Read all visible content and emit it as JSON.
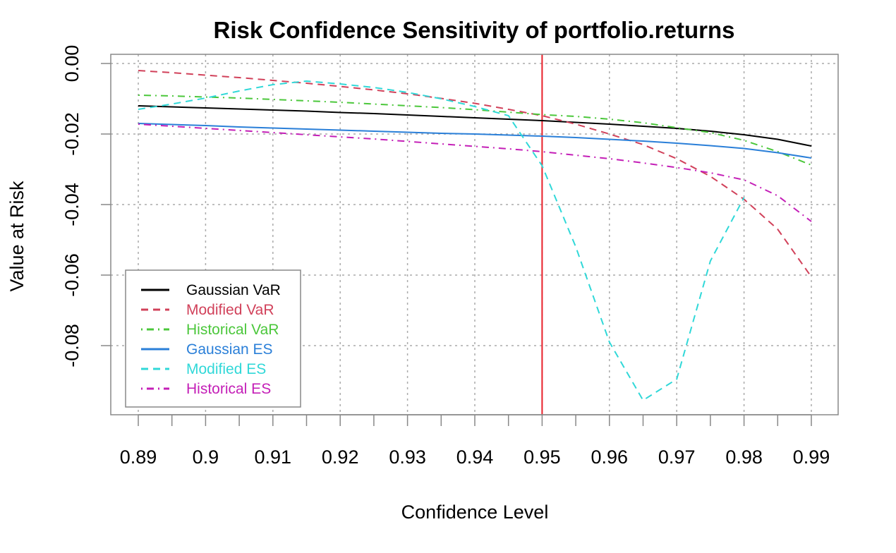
{
  "chart_data": {
    "type": "line",
    "title": "Risk Confidence Sensitivity of portfolio.returns",
    "xlabel": "Confidence Level",
    "ylabel": "Value at Risk",
    "xlim": [
      0.89,
      0.99
    ],
    "ylim": [
      -0.1,
      0.0
    ],
    "x_ticks": [
      0.89,
      0.9,
      0.91,
      0.92,
      0.93,
      0.94,
      0.95,
      0.96,
      0.97,
      0.98,
      0.99
    ],
    "x_tick_labels": [
      "0.89",
      "0.9",
      "0.91",
      "0.92",
      "0.93",
      "0.94",
      "0.95",
      "0.96",
      "0.97",
      "0.98",
      "0.99"
    ],
    "y_ticks": [
      0.0,
      -0.02,
      -0.04,
      -0.06,
      -0.08
    ],
    "y_tick_labels": [
      "0.00",
      "-0.02",
      "-0.04",
      "-0.06",
      "-0.08"
    ],
    "grid": true,
    "vline": {
      "x": 0.95,
      "color": "#e8202a"
    },
    "legend_position": "bottom-left",
    "x": [
      0.89,
      0.895,
      0.9,
      0.905,
      0.91,
      0.915,
      0.92,
      0.925,
      0.93,
      0.935,
      0.94,
      0.945,
      0.95,
      0.955,
      0.96,
      0.965,
      0.97,
      0.975,
      0.98,
      0.985,
      0.99
    ],
    "series": [
      {
        "name": "Gaussian VaR",
        "color": "#000000",
        "dash": "solid",
        "values": [
          -0.012,
          -0.0123,
          -0.0126,
          -0.0129,
          -0.0132,
          -0.0135,
          -0.0139,
          -0.0142,
          -0.0146,
          -0.015,
          -0.0154,
          -0.0158,
          -0.0162,
          -0.0167,
          -0.0172,
          -0.0178,
          -0.0184,
          -0.0192,
          -0.0202,
          -0.0215,
          -0.0234
        ]
      },
      {
        "name": "Modified VaR",
        "color": "#d1415a",
        "dash": "dashed",
        "values": [
          -0.002,
          -0.0026,
          -0.0033,
          -0.004,
          -0.0048,
          -0.0056,
          -0.0065,
          -0.0075,
          -0.0086,
          -0.0099,
          -0.0113,
          -0.013,
          -0.0148,
          -0.0172,
          -0.02,
          -0.023,
          -0.027,
          -0.032,
          -0.0385,
          -0.047,
          -0.0605
        ]
      },
      {
        "name": "Historical VaR",
        "color": "#4bc73b",
        "dash": "dotdash",
        "values": [
          -0.009,
          -0.0092,
          -0.0095,
          -0.0098,
          -0.0102,
          -0.0106,
          -0.011,
          -0.0115,
          -0.012,
          -0.0125,
          -0.0131,
          -0.0138,
          -0.0145,
          -0.015,
          -0.0158,
          -0.0168,
          -0.0182,
          -0.0196,
          -0.0218,
          -0.025,
          -0.0288
        ]
      },
      {
        "name": "Gaussian ES",
        "color": "#2a7fd8",
        "dash": "solid",
        "values": [
          -0.017,
          -0.0173,
          -0.0176,
          -0.018,
          -0.0183,
          -0.0186,
          -0.0189,
          -0.0192,
          -0.0195,
          -0.0198,
          -0.02,
          -0.0203,
          -0.0206,
          -0.021,
          -0.0215,
          -0.022,
          -0.0226,
          -0.0233,
          -0.0241,
          -0.0253,
          -0.0268
        ]
      },
      {
        "name": "Modified ES",
        "color": "#30d8d8",
        "dash": "dashed",
        "values": [
          -0.013,
          -0.0115,
          -0.0098,
          -0.0078,
          -0.006,
          -0.005,
          -0.0058,
          -0.0068,
          -0.0082,
          -0.01,
          -0.0122,
          -0.0148,
          -0.029,
          -0.052,
          -0.079,
          -0.0955,
          -0.0895,
          -0.056,
          -0.038,
          null,
          null
        ]
      },
      {
        "name": "Historical ES",
        "color": "#c41fb7",
        "dash": "dotdash",
        "values": [
          -0.0172,
          -0.0178,
          -0.0184,
          -0.019,
          -0.0196,
          -0.0202,
          -0.0208,
          -0.0214,
          -0.0221,
          -0.0228,
          -0.0235,
          -0.0242,
          -0.025,
          -0.026,
          -0.027,
          -0.0282,
          -0.0295,
          -0.031,
          -0.033,
          -0.0375,
          -0.0448
        ]
      }
    ]
  }
}
